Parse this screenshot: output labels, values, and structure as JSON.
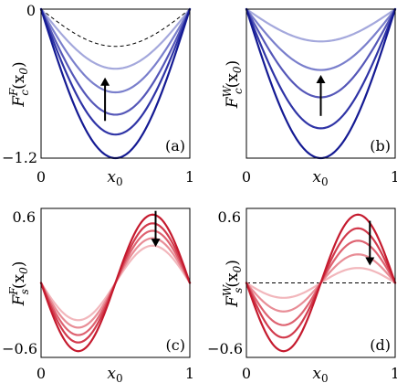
{
  "chart_data": [
    {
      "panel": "a",
      "type": "line",
      "panel_label": "(a)",
      "ylabel_main": "F",
      "ylabel_sup": "F",
      "ylabel_sub": "c",
      "ylabel_arg": "(x",
      "ylabel_arg_sub": "0",
      "ylabel_close": ")",
      "xlabel_main": "x",
      "xlabel_sub": "0",
      "xlim": [
        0,
        1
      ],
      "ylim": [
        -1.2,
        0
      ],
      "xticks": [
        "0",
        "1"
      ],
      "yticks": [
        "0",
        "−1.2"
      ],
      "ytick_values": [
        0,
        -1.2
      ],
      "shape": "cos",
      "series_min": [
        -0.48,
        -0.67,
        -0.85,
        -1.01,
        -1.2
      ],
      "series_colors": [
        "#a4a8dc",
        "#7a7fcc",
        "#5557b8",
        "#2f34a6",
        "#141a93"
      ],
      "reference_min": -0.3,
      "reference_color": "#000000",
      "arrow": "up",
      "arrow_x": 0.43,
      "arrow_y": [
        -0.9,
        -0.55
      ]
    },
    {
      "panel": "b",
      "type": "line",
      "panel_label": "(b)",
      "ylabel_main": "F",
      "ylabel_sup": "W",
      "ylabel_sub": "c",
      "ylabel_arg": "(x",
      "ylabel_arg_sub": "0",
      "ylabel_close": ")",
      "xlabel_main": "x",
      "xlabel_sub": "0",
      "xlim": [
        0,
        1
      ],
      "ylim": [
        -1.2,
        0
      ],
      "xticks": [
        "0",
        "1"
      ],
      "yticks": [],
      "ytick_values": [
        0,
        -1.2
      ],
      "shape": "cos",
      "series_min": [
        -0.26,
        -0.49,
        -0.71,
        -0.96,
        -1.2
      ],
      "series_colors": [
        "#a4a8dc",
        "#7a7fcc",
        "#5557b8",
        "#2f34a6",
        "#141a93"
      ],
      "reference_min": 0,
      "reference_color": "#000000",
      "arrow": "up",
      "arrow_x": 0.5,
      "arrow_y": [
        -0.86,
        -0.53
      ]
    },
    {
      "panel": "c",
      "type": "line",
      "panel_label": "(c)",
      "ylabel_main": "F",
      "ylabel_sup": "F",
      "ylabel_sub": "s",
      "ylabel_arg": "(x",
      "ylabel_arg_sub": "0",
      "ylabel_close": ")",
      "xlabel_main": "x",
      "xlabel_sub": "0",
      "xlim": [
        0,
        1
      ],
      "ylim": [
        -0.6,
        0.6
      ],
      "xticks": [
        "0",
        "1"
      ],
      "yticks": [
        "0.6",
        "−0.6"
      ],
      "ytick_values": [
        0.6,
        -0.6
      ],
      "shape": "sin",
      "series_amp": [
        0.3,
        0.36,
        0.42,
        0.48,
        0.55
      ],
      "series_colors": [
        "#f2b7bc",
        "#e88d96",
        "#de6270",
        "#d23a4c",
        "#c51a2e"
      ],
      "reference_amp": 0.3,
      "reference_color": "#000000",
      "arrow": "down",
      "arrow_x": 0.77,
      "arrow_y": [
        0.58,
        0.29
      ]
    },
    {
      "panel": "d",
      "type": "line",
      "panel_label": "(d)",
      "ylabel_main": "F",
      "ylabel_sup": "W",
      "ylabel_sub": "s",
      "ylabel_arg": "(x",
      "ylabel_arg_sub": "0",
      "ylabel_close": ")",
      "xlabel_main": "x",
      "xlabel_sub": "0",
      "xlim": [
        0,
        1
      ],
      "ylim": [
        -0.6,
        0.6
      ],
      "xticks": [
        "0",
        "1"
      ],
      "yticks": [
        "0.6",
        "−0.6"
      ],
      "ytick_values": [
        0.6,
        -0.6
      ],
      "shape": "sin",
      "series_amp": [
        0.12,
        0.23,
        0.34,
        0.44,
        0.55
      ],
      "series_colors": [
        "#f2b7bc",
        "#e88d96",
        "#de6270",
        "#d23a4c",
        "#c51a2e"
      ],
      "reference_amp": 0,
      "reference_color": "#000000",
      "arrow": "down",
      "arrow_x": 0.83,
      "arrow_y": [
        0.5,
        0.14
      ]
    }
  ]
}
